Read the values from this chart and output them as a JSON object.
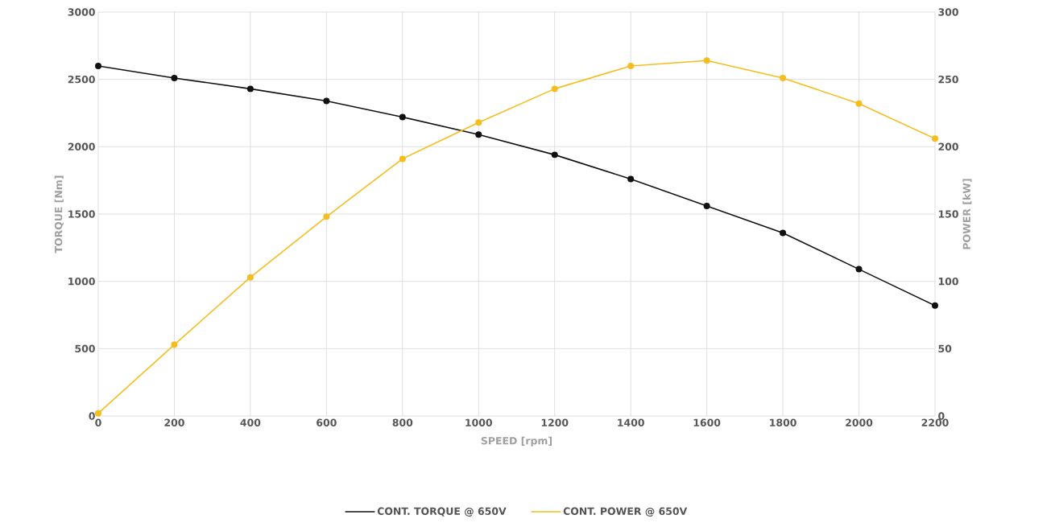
{
  "chart_data": {
    "type": "line",
    "x": [
      0,
      200,
      400,
      600,
      800,
      1000,
      1200,
      1400,
      1600,
      1800,
      2000,
      2200
    ],
    "series": [
      {
        "name": "CONT. TORQUE @ 650V",
        "color": "#111111",
        "values": [
          2600,
          2510,
          2430,
          2340,
          2220,
          2090,
          1940,
          1760,
          1560,
          1360,
          1090,
          820
        ]
      },
      {
        "name": "CONT. POWER @ 650V",
        "color": "#f5bd1f",
        "axis": "y2",
        "values": [
          2,
          53,
          103,
          148,
          191,
          218,
          243,
          260,
          264,
          251,
          232,
          206
        ]
      }
    ],
    "xlabel": "SPEED [rpm]",
    "ylabel": "TORQUE [Nm]",
    "y2label": "POWER [kW]",
    "xlim": [
      0,
      2200
    ],
    "xticks": [
      0,
      200,
      400,
      600,
      800,
      1000,
      1200,
      1400,
      1600,
      1800,
      2000,
      2200
    ],
    "ylim": [
      0,
      3000
    ],
    "yticks": [
      0,
      500,
      1000,
      1500,
      2000,
      2500,
      3000
    ],
    "y2lim": [
      0,
      300
    ],
    "y2ticks": [
      0,
      50,
      100,
      150,
      200,
      250,
      300
    ],
    "grid": true,
    "legend": "bottom",
    "marker": "circle"
  }
}
